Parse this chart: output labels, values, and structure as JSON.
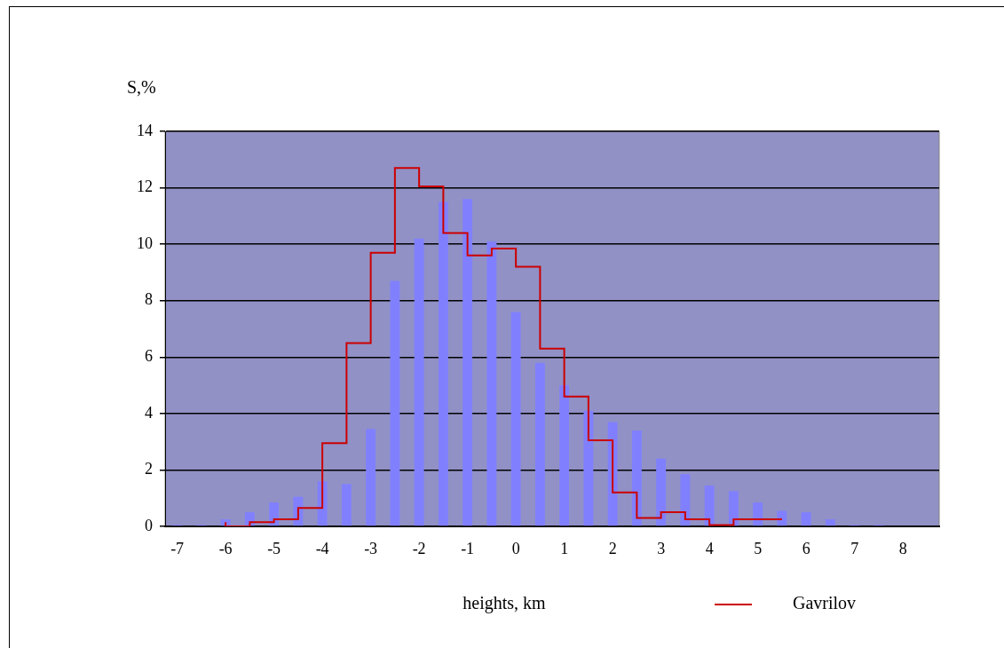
{
  "chart_data": {
    "type": "bar",
    "xlabel": "heights, km",
    "ylabel": "S,%",
    "categories": [
      "-7",
      null,
      "-6",
      null,
      "-5",
      null,
      "-4",
      null,
      "-3",
      null,
      "-2",
      null,
      "-1",
      null,
      "0",
      null,
      "1",
      null,
      "2",
      null,
      "3",
      null,
      "4",
      null,
      "5",
      null,
      "6",
      null,
      "7",
      null,
      "8",
      null
    ],
    "series": [
      {
        "color": "#8080ff",
        "values": [
          0.05,
          0.05,
          0.25,
          0.5,
          0.85,
          1.05,
          1.6,
          1.5,
          3.45,
          8.7,
          10.2,
          11.5,
          11.6,
          10.1,
          7.6,
          5.8,
          5.0,
          4.1,
          3.7,
          3.4,
          2.4,
          1.85,
          1.45,
          1.25,
          0.85,
          0.55,
          0.5,
          0.25,
          0.05,
          0.05,
          0,
          0
        ]
      },
      {
        "type": "step",
        "name": "Gavrilov",
        "color": "#cc0000",
        "values": [
          null,
          null,
          0.15,
          0,
          0.15,
          0.25,
          0.65,
          2.95,
          6.5,
          9.7,
          12.7,
          12.05,
          10.4,
          9.6,
          9.85,
          9.2,
          6.3,
          4.6,
          3.05,
          1.2,
          0.3,
          0.5,
          0.25,
          0.05,
          0.25,
          0.25,
          null,
          null,
          null,
          null,
          null,
          null
        ]
      }
    ],
    "ylim": [
      0,
      14
    ],
    "yticks": [
      0,
      2,
      4,
      6,
      8,
      10,
      12,
      14
    ],
    "grid": "y",
    "legend": "bottom right"
  }
}
